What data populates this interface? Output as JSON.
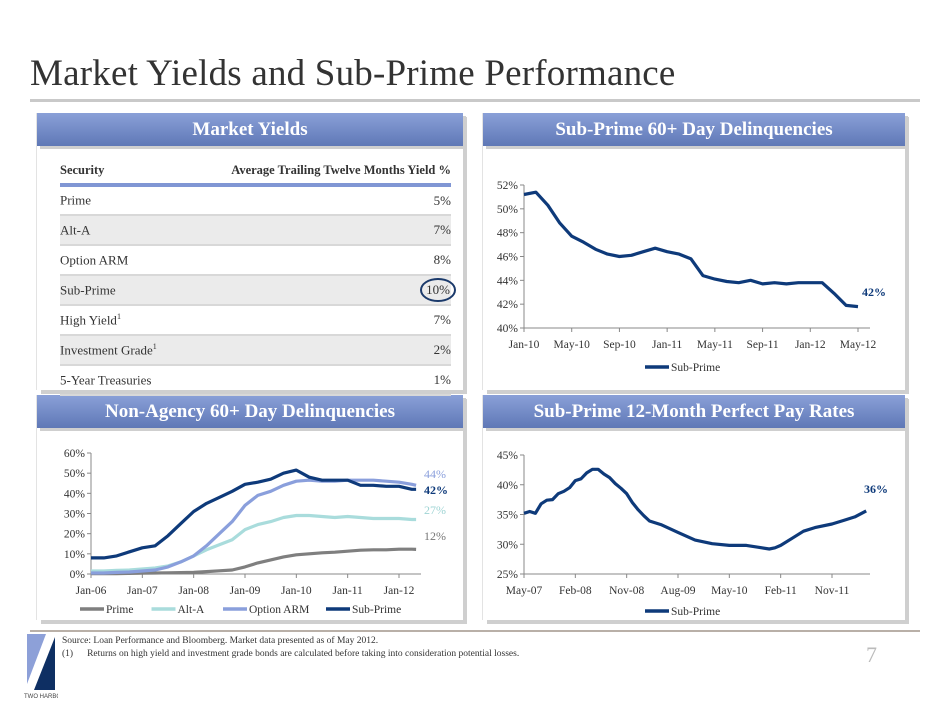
{
  "title": "Market Yields and Sub-Prime Performance",
  "colors": {
    "header": "#6f86c6",
    "prime": "#7f7f7f",
    "alt_a": "#a9dcdc",
    "option_arm": "#8a9fdc",
    "sub_prime": "#0e3a7a"
  },
  "market_yields": {
    "header": "Market Yields",
    "columns": [
      "Security",
      "Average Trailing Twelve Months Yield %"
    ],
    "rows": [
      {
        "security": "Prime",
        "note": "",
        "yield": "5%"
      },
      {
        "security": "Alt-A",
        "note": "",
        "yield": "7%"
      },
      {
        "security": "Option ARM",
        "note": "",
        "yield": "8%"
      },
      {
        "security": "Sub-Prime",
        "note": "",
        "yield": "10%",
        "highlighted": true
      },
      {
        "security": "High Yield",
        "note": "1",
        "yield": "7%"
      },
      {
        "security": "Investment Grade",
        "note": "1",
        "yield": "2%"
      },
      {
        "security": "5-Year Treasuries",
        "note": "",
        "yield": "1%"
      }
    ]
  },
  "chart_data": [
    {
      "id": "subprime-60-day",
      "type": "line",
      "title": "Sub-Prime 60+ Day Delinquencies",
      "ylim": [
        40,
        52
      ],
      "yticks": [
        "40%",
        "42%",
        "44%",
        "46%",
        "48%",
        "50%",
        "52%"
      ],
      "xticks": [
        "Jan-10",
        "May-10",
        "Sep-10",
        "Jan-11",
        "May-11",
        "Sep-11",
        "Jan-12",
        "May-12"
      ],
      "legend": "bottom",
      "series": [
        {
          "name": "Sub-Prime",
          "color": "#0e3a7a",
          "x": [
            "Jan-10",
            "Feb-10",
            "Mar-10",
            "Apr-10",
            "May-10",
            "Jun-10",
            "Jul-10",
            "Aug-10",
            "Sep-10",
            "Oct-10",
            "Nov-10",
            "Dec-10",
            "Jan-11",
            "Feb-11",
            "Mar-11",
            "Apr-11",
            "May-11",
            "Jun-11",
            "Jul-11",
            "Aug-11",
            "Sep-11",
            "Oct-11",
            "Nov-11",
            "Dec-11",
            "Jan-12",
            "Feb-12",
            "Mar-12",
            "Apr-12",
            "May-12"
          ],
          "values": [
            51.2,
            51.4,
            50.3,
            48.8,
            47.7,
            47.2,
            46.6,
            46.2,
            46.0,
            46.1,
            46.4,
            46.7,
            46.4,
            46.2,
            45.8,
            44.4,
            44.1,
            43.9,
            43.8,
            44.0,
            43.7,
            43.8,
            43.7,
            43.8,
            43.8,
            43.8,
            42.9,
            41.9,
            41.8
          ]
        }
      ],
      "annotations": [
        {
          "text": "42%",
          "series": "Sub-Prime"
        }
      ]
    },
    {
      "id": "non-agency-60-day",
      "type": "line",
      "title": "Non-Agency 60+ Day Delinquencies",
      "ylim": [
        0,
        60
      ],
      "yticks": [
        "0%",
        "10%",
        "20%",
        "30%",
        "40%",
        "50%",
        "60%"
      ],
      "xticks": [
        "Jan-06",
        "Jan-07",
        "Jan-08",
        "Jan-09",
        "Jan-10",
        "Jan-11",
        "Jan-12"
      ],
      "legend": "bottom",
      "x": [
        "Jan-06",
        "Apr-06",
        "Jul-06",
        "Oct-06",
        "Jan-07",
        "Apr-07",
        "Jul-07",
        "Oct-07",
        "Jan-08",
        "Apr-08",
        "Jul-08",
        "Oct-08",
        "Jan-09",
        "Apr-09",
        "Jul-09",
        "Oct-09",
        "Jan-10",
        "Apr-10",
        "Jul-10",
        "Oct-10",
        "Jan-11",
        "Apr-11",
        "Jul-11",
        "Oct-11",
        "Jan-12",
        "Apr-12",
        "May-12"
      ],
      "series": [
        {
          "name": "Prime",
          "color": "#7f7f7f",
          "values": [
            0.2,
            0.2,
            0.2,
            0.3,
            0.4,
            0.5,
            0.6,
            0.7,
            0.8,
            1.2,
            1.6,
            2,
            3.5,
            5.5,
            7,
            8.5,
            9.5,
            10,
            10.5,
            10.8,
            11.3,
            11.8,
            12,
            12,
            12.3,
            12.3,
            12.2
          ]
        },
        {
          "name": "Alt-A",
          "color": "#a9dcdc",
          "values": [
            1.5,
            1.5,
            1.8,
            2,
            2.5,
            3,
            4,
            6,
            9,
            12,
            14.5,
            17,
            22,
            24.5,
            26,
            28,
            29,
            29,
            28.5,
            28,
            28.5,
            28,
            27.5,
            27.5,
            27.5,
            27,
            27
          ]
        },
        {
          "name": "Option ARM",
          "color": "#8a9fdc",
          "values": [
            0.5,
            0.5,
            0.8,
            1,
            1.5,
            2,
            3.5,
            6,
            9,
            14,
            20,
            26,
            34,
            39,
            41,
            44,
            46,
            46.5,
            46,
            46,
            46.5,
            46.5,
            46.5,
            46,
            45.5,
            44.5,
            44
          ]
        },
        {
          "name": "Sub-Prime",
          "color": "#0e3a7a",
          "values": [
            8,
            8,
            9,
            11,
            13,
            14,
            19,
            25,
            31,
            35,
            38,
            41,
            44.5,
            45.5,
            47,
            50,
            51.5,
            48,
            46.5,
            46.5,
            46.5,
            44,
            44,
            43.5,
            43.5,
            42,
            42
          ]
        }
      ],
      "annotations": [
        {
          "text": "44%",
          "series": "Option ARM"
        },
        {
          "text": "42%",
          "series": "Sub-Prime"
        },
        {
          "text": "27%",
          "series": "Alt-A"
        },
        {
          "text": "12%",
          "series": "Prime"
        }
      ]
    },
    {
      "id": "subprime-perfect-pay",
      "type": "line",
      "title": "Sub-Prime 12-Month Perfect Pay Rates",
      "ylim": [
        25,
        45
      ],
      "yticks": [
        "25%",
        "30%",
        "35%",
        "40%",
        "45%"
      ],
      "xticks": [
        "May-07",
        "Feb-08",
        "Nov-08",
        "Aug-09",
        "May-10",
        "Feb-11",
        "Nov-11"
      ],
      "legend": "bottom",
      "series": [
        {
          "name": "Sub-Prime",
          "color": "#0e3a7a",
          "x": [
            "May-07",
            "Jun-07",
            "Jul-07",
            "Aug-07",
            "Sep-07",
            "Oct-07",
            "Nov-07",
            "Dec-07",
            "Jan-08",
            "Feb-08",
            "Mar-08",
            "Apr-08",
            "May-08",
            "Jun-08",
            "Jul-08",
            "Aug-08",
            "Sep-08",
            "Oct-08",
            "Nov-08",
            "Dec-08",
            "Jan-09",
            "Feb-09",
            "Mar-09",
            "May-09",
            "Aug-09",
            "Nov-09",
            "Feb-10",
            "May-10",
            "Aug-10",
            "Oct-10",
            "Dec-10",
            "Jan-11",
            "Feb-11",
            "Apr-11",
            "Jun-11",
            "Aug-11",
            "Nov-11",
            "Jan-12",
            "Mar-12",
            "May-12"
          ],
          "values": [
            35.2,
            35.5,
            35.2,
            36.8,
            37.4,
            37.5,
            38.5,
            38.9,
            39.5,
            40.7,
            41,
            42,
            42.6,
            42.6,
            41.8,
            41.2,
            40.2,
            39.4,
            38.5,
            37,
            35.8,
            34.8,
            33.9,
            33.3,
            32,
            30.7,
            30.1,
            29.8,
            29.8,
            29.5,
            29.2,
            29.4,
            29.8,
            31,
            32.2,
            32.8,
            33.4,
            34,
            34.6,
            35.6
          ]
        }
      ],
      "annotations": [
        {
          "text": "36%",
          "series": "Sub-Prime"
        }
      ]
    }
  ],
  "footer": {
    "source": "Source:  Loan Performance and Bloomberg.  Market data presented as of May 2012.",
    "note_marker": "(1)",
    "note": "Returns on high yield and investment grade bonds are calculated before taking into consideration potential losses.",
    "page_number": "7",
    "logo_text": "TWO HARBORS Investment Corp."
  }
}
